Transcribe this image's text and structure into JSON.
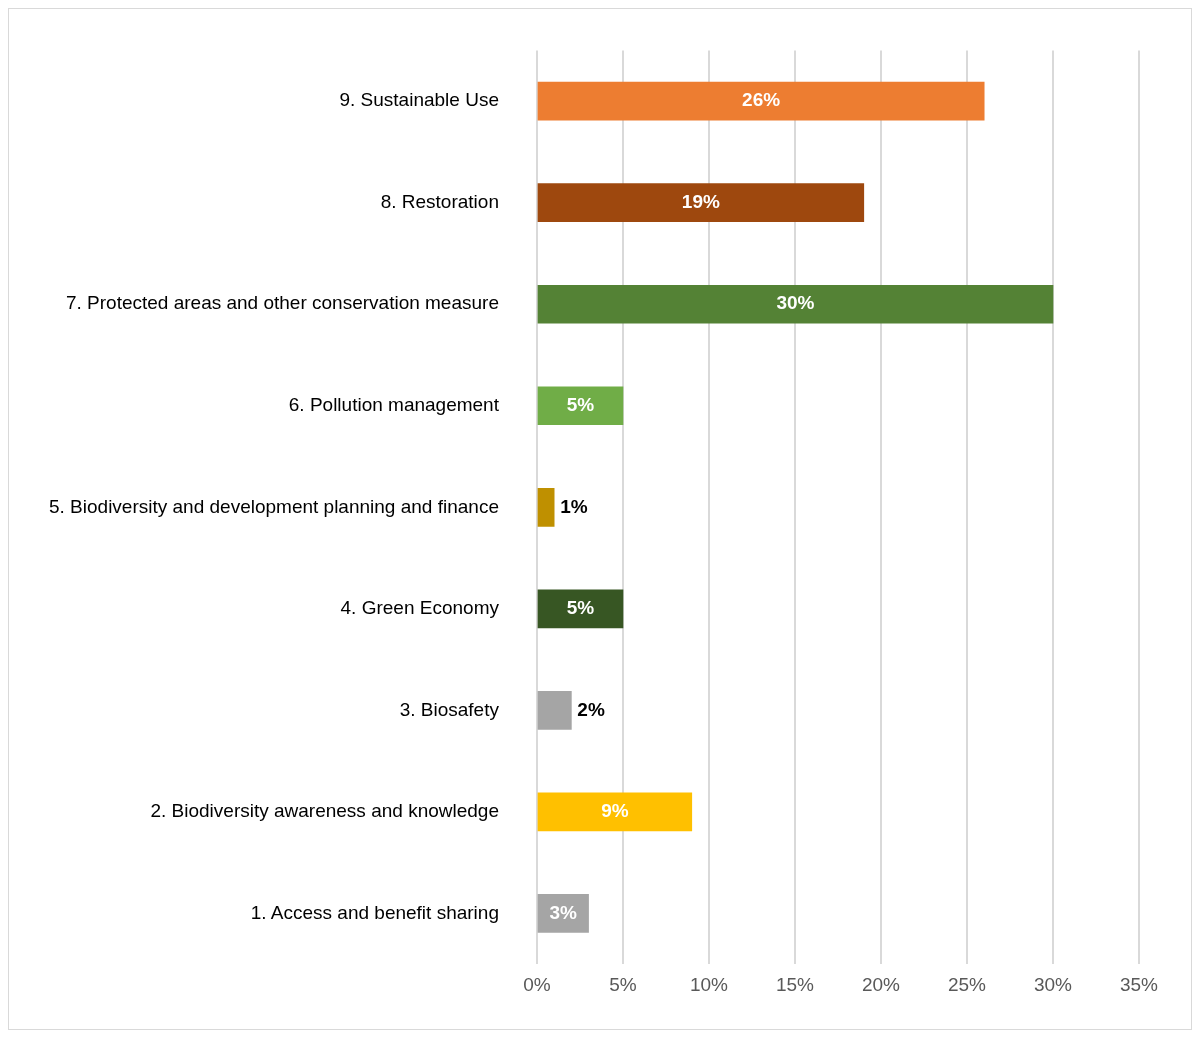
{
  "chart_data": {
    "type": "bar",
    "orientation": "horizontal",
    "categories": [
      "9. Sustainable Use",
      "8. Restoration",
      "7. Protected areas and other conservation measure",
      "6. Pollution management",
      "5. Biodiversity and development planning and finance",
      "4. Green Economy",
      "3. Biosafety",
      "2. Biodiversity awareness and knowledge",
      "1. Access and benefit sharing"
    ],
    "values": [
      26,
      19,
      30,
      5,
      1,
      5,
      2,
      9,
      3
    ],
    "colors": [
      "#ed7d31",
      "#9e480e",
      "#548235",
      "#70ad47",
      "#bf9000",
      "#375623",
      "#a5a5a5",
      "#ffc000",
      "#a5a5a5"
    ],
    "value_labels": [
      "26%",
      "19%",
      "30%",
      "5%",
      "1%",
      "5%",
      "2%",
      "9%",
      "3%"
    ],
    "xlim": [
      0,
      35
    ],
    "xticks": [
      {
        "value": 0,
        "label": "0%"
      },
      {
        "value": 5,
        "label": "5%"
      },
      {
        "value": 10,
        "label": "10%"
      },
      {
        "value": 15,
        "label": "15%"
      },
      {
        "value": 20,
        "label": "20%"
      },
      {
        "value": 25,
        "label": "25%"
      },
      {
        "value": 30,
        "label": "30%"
      },
      {
        "value": 35,
        "label": "35%"
      }
    ],
    "grid": "x",
    "legend": false
  }
}
